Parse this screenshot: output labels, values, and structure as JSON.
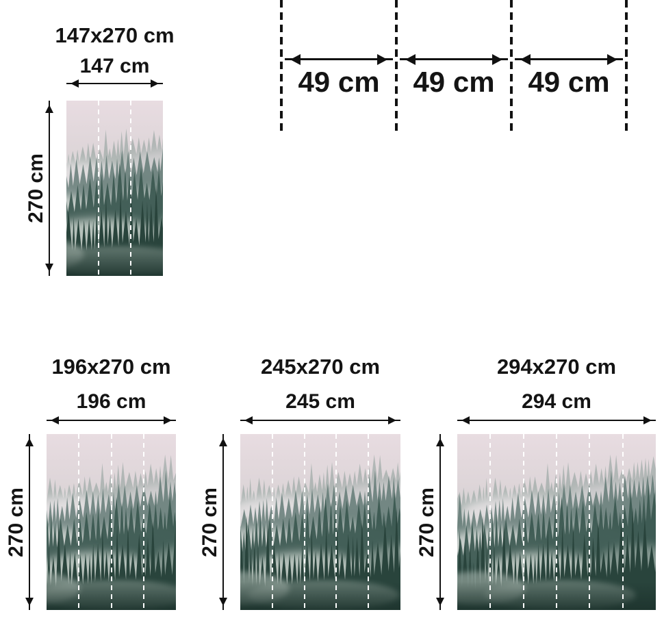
{
  "variants": [
    {
      "title": "147x270 cm",
      "width_label": "147 cm",
      "height_label": "270 cm",
      "panels": 3
    },
    {
      "title": "196x270 cm",
      "width_label": "196 cm",
      "height_label": "270 cm",
      "panels": 4
    },
    {
      "title": "245x270 cm",
      "width_label": "245 cm",
      "height_label": "270 cm",
      "panels": 5
    },
    {
      "title": "294x270 cm",
      "width_label": "294 cm",
      "height_label": "270 cm",
      "panels": 6
    }
  ],
  "panel_diagram": {
    "segments": [
      "49 cm",
      "49 cm",
      "49 cm"
    ]
  },
  "colors": {
    "background": "#ffffff",
    "text": "#141414",
    "dimension_lines": "#111111",
    "panel_divider": "#ffffff",
    "forest_sky": "#e8dce1",
    "forest_far_trees": "#8a9d98",
    "forest_mid_trees": "#5d7670",
    "forest_near_trees": "#3b5850",
    "forest_front_trees": "#29443c"
  }
}
